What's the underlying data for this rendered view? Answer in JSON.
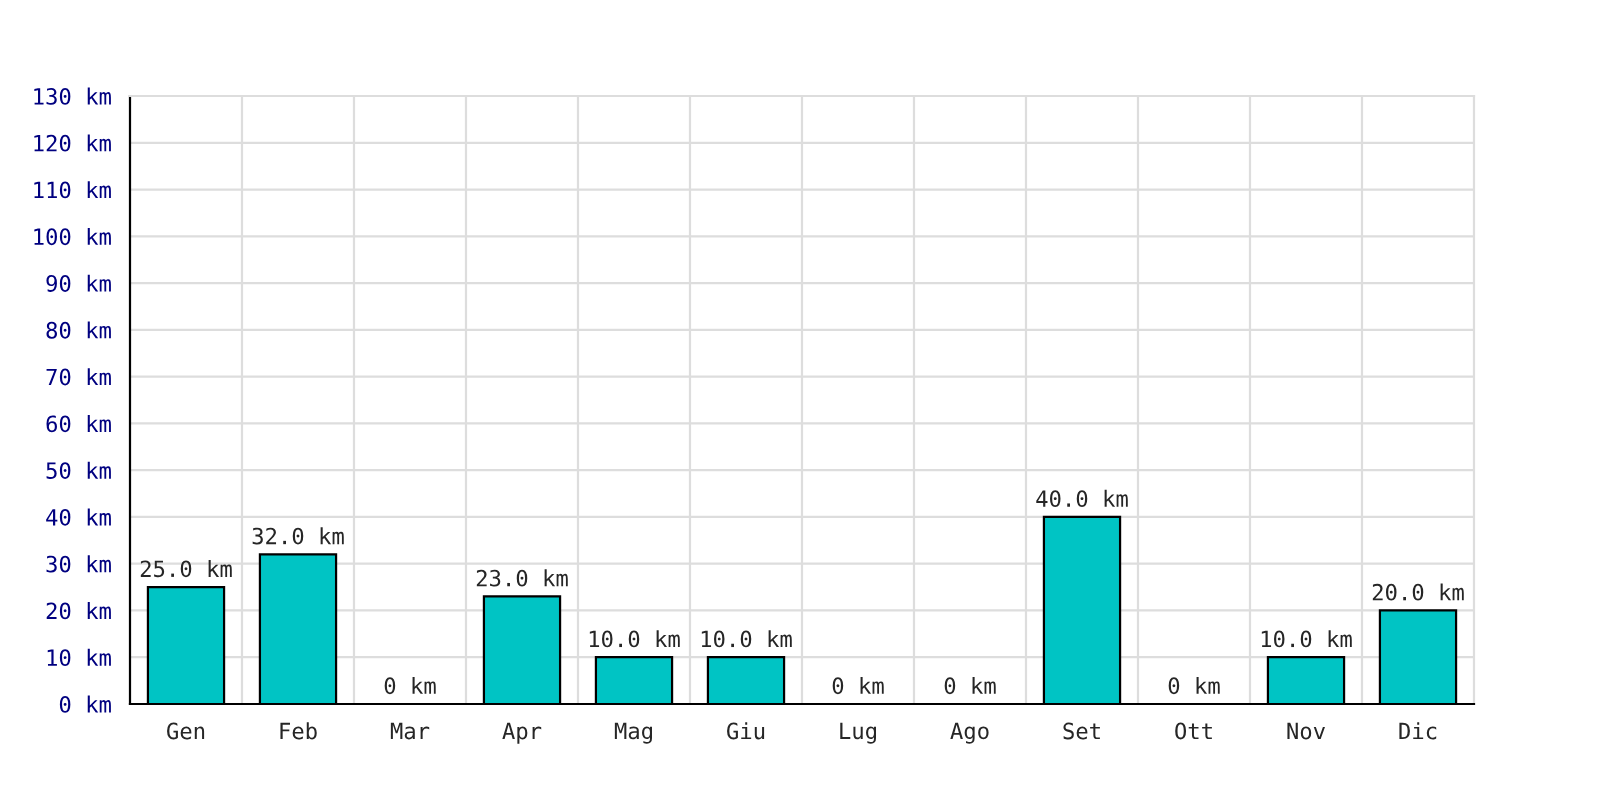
{
  "chart_data": {
    "type": "bar",
    "categories": [
      "Gen",
      "Feb",
      "Mar",
      "Apr",
      "Mag",
      "Giu",
      "Lug",
      "Ago",
      "Set",
      "Ott",
      "Nov",
      "Dic"
    ],
    "values": [
      25,
      32,
      0,
      23,
      10,
      10,
      0,
      0,
      40,
      0,
      10,
      20
    ],
    "value_labels": [
      "25.0 km",
      "32.0 km",
      "0 km",
      "23.0 km",
      "10.0 km",
      "10.0 km",
      "0 km",
      "0 km",
      "40.0 km",
      "0 km",
      "10.0 km",
      "20.0 km"
    ],
    "color": "#00c4c4",
    "ylim": [
      0,
      130
    ],
    "yticks": [
      {
        "value": 0,
        "label": "0 km"
      },
      {
        "value": 10,
        "label": "10 km"
      },
      {
        "value": 20,
        "label": "20 km"
      },
      {
        "value": 30,
        "label": "30 km"
      },
      {
        "value": 40,
        "label": "40 km"
      },
      {
        "value": 50,
        "label": "50 km"
      },
      {
        "value": 60,
        "label": "60 km"
      },
      {
        "value": 70,
        "label": "70 km"
      },
      {
        "value": 80,
        "label": "80 km"
      },
      {
        "value": 90,
        "label": "90 km"
      },
      {
        "value": 100,
        "label": "100 km"
      },
      {
        "value": 110,
        "label": "110 km"
      },
      {
        "value": 120,
        "label": "120 km"
      },
      {
        "value": 130,
        "label": "130 km"
      }
    ],
    "grid": true
  }
}
